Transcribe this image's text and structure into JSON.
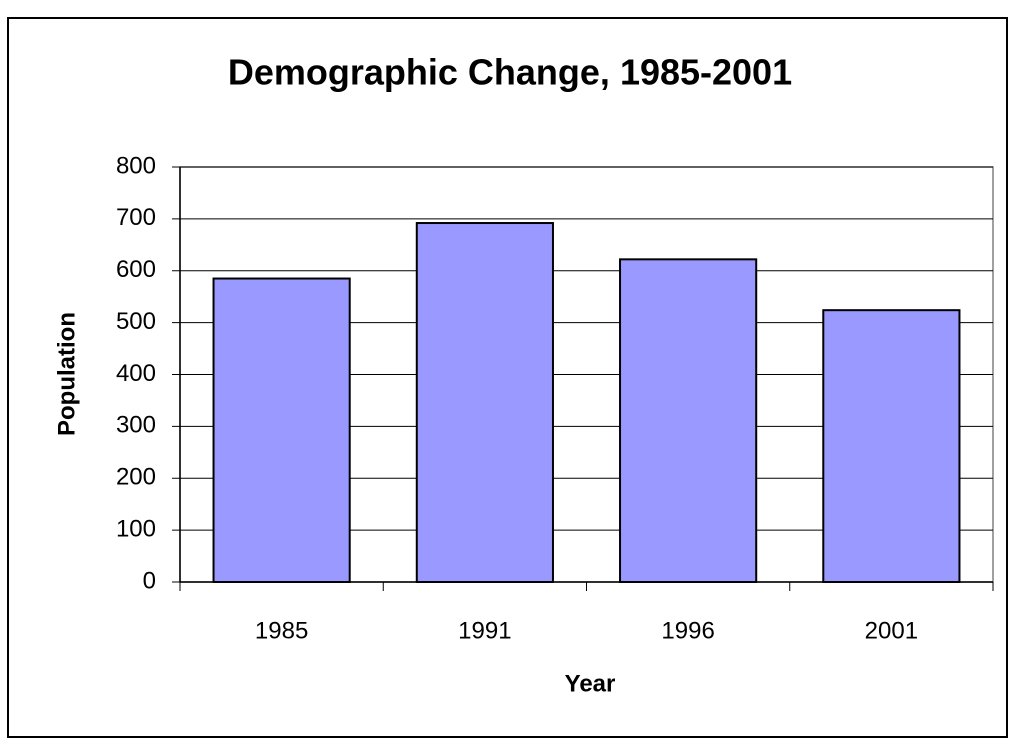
{
  "chart_data": {
    "type": "bar",
    "title": "Demographic Change, 1985-2001",
    "x_label": "Year",
    "y_label": "Population",
    "categories": [
      "1985",
      "1991",
      "1996",
      "2001"
    ],
    "values": [
      585,
      692,
      622,
      524
    ],
    "color": "#9999ff",
    "ylim": [
      0,
      800
    ],
    "yticks": [
      0,
      100,
      200,
      300,
      400,
      500,
      600,
      700,
      800
    ],
    "grid": true
  }
}
